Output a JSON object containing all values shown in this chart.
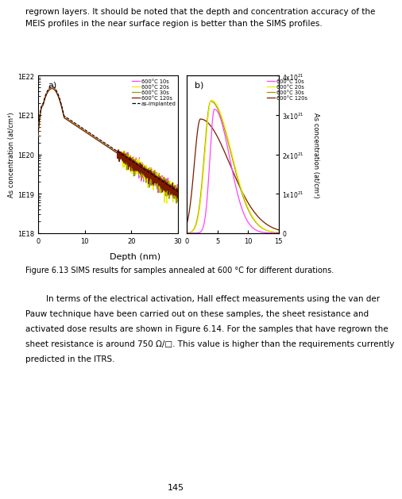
{
  "xlabel": "Depth (nm)",
  "ylabel_left": "As concentration (at/cm³)",
  "ylabel_right": "As concentration (at/cm³)",
  "ax_a": {
    "label": "a)",
    "xlim": [
      0,
      30
    ],
    "ylim_log": [
      1e+18,
      1e+22
    ],
    "xticks": [
      0,
      10,
      20,
      30
    ]
  },
  "ax_b": {
    "label": "b)",
    "xlim": [
      0,
      15
    ],
    "ylim_lin": [
      0,
      4e+21
    ],
    "yticks": [
      0,
      1e+21,
      2e+21,
      3e+21,
      4e+21
    ],
    "ytick_labels": [
      "0",
      "1×10²¹",
      "2×10²¹",
      "3×10²¹",
      "4×10²¹"
    ],
    "xticks": [
      0,
      5,
      10,
      15
    ]
  },
  "colors": {
    "10s": "#ff44ff",
    "20s": "#eeee00",
    "30s": "#999900",
    "120s": "#7a1a00",
    "as_implanted": "#000000"
  },
  "legend_a": [
    "600°C 10s",
    "600°C 20s",
    "600°C 30s",
    "600°C 120s",
    "as-implanted"
  ],
  "legend_b": [
    "600°C 10s",
    "600°C 20s",
    "600°C 30s",
    "600°C 120s"
  ],
  "page_text_1": "regrown layers. It should be noted that the depth and concentration accuracy of the",
  "page_text_2": "MEIS profiles in the near surface region is better than the SIMS profiles.",
  "caption": "Figure 6.13 SIMS results for samples annealed at 600 °C for different durations.",
  "body_indent": "        In terms of the electrical activation, Hall effect measurements using the van der",
  "body_line2": "Pauw technique have been carried out on these samples, the sheet resistance and",
  "body_line3": "activated dose results are shown in Figure 6.14. For the samples that have regrown the",
  "body_line4": "sheet resistance is around 750 Ω/□. This value is higher than the requirements currently",
  "body_line5": "predicted in the ITRS.",
  "page_number": "145"
}
